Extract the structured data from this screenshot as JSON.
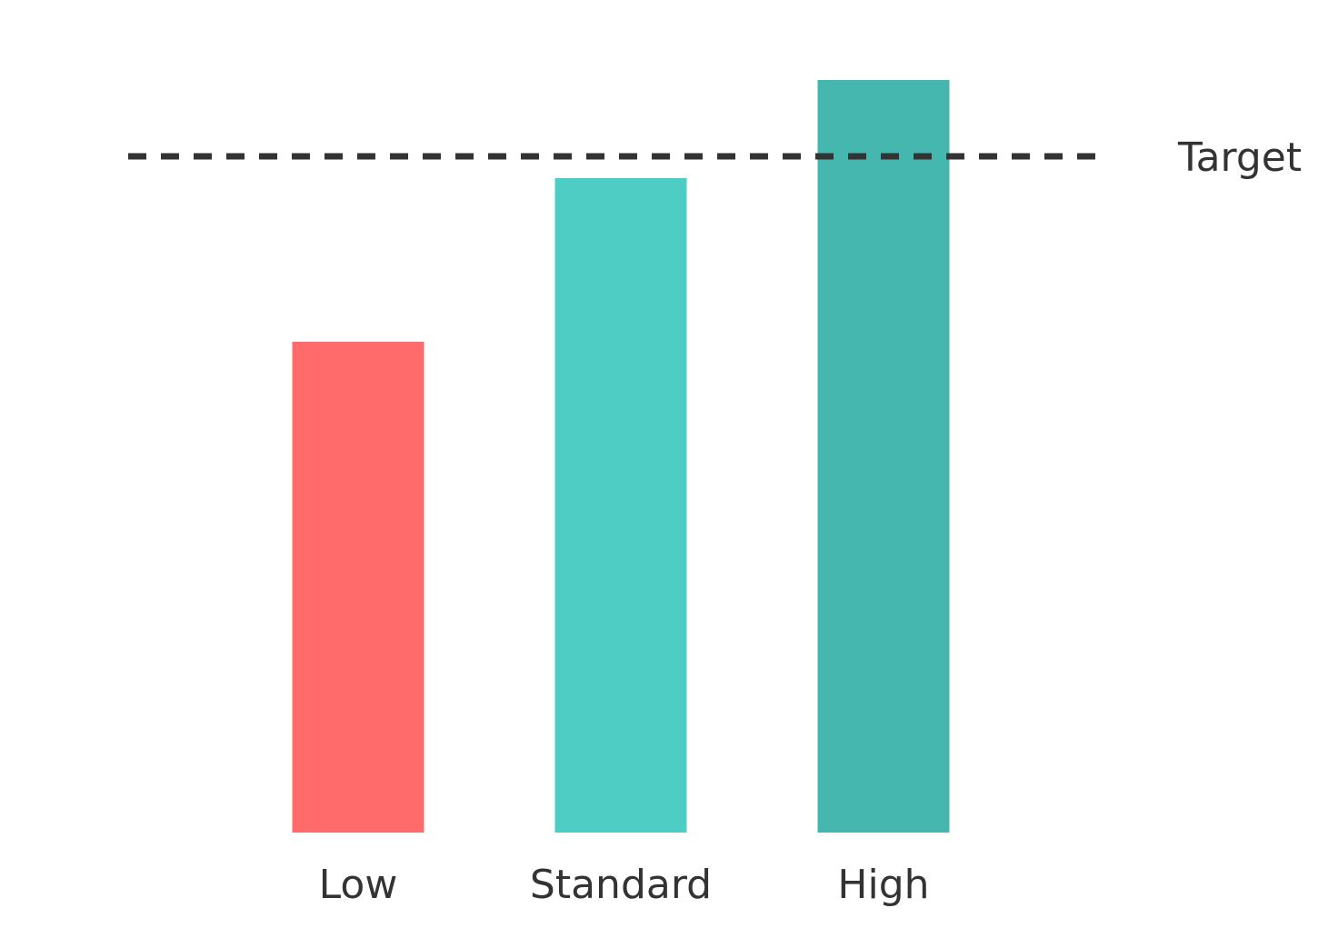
{
  "chart_data": {
    "type": "bar",
    "categories": [
      "Low",
      "Standard",
      "High"
    ],
    "values": [
      60,
      80,
      92
    ],
    "colors": [
      "#FF6B6B",
      "#4ECDC4",
      "#45B7AF"
    ],
    "ylim": [
      0,
      100
    ],
    "reference_line": {
      "label": "Target",
      "value": 80,
      "style": "dashed",
      "color": "#333333"
    },
    "title": "",
    "xlabel": "",
    "ylabel": "",
    "grid": false,
    "axes_visible": false
  }
}
